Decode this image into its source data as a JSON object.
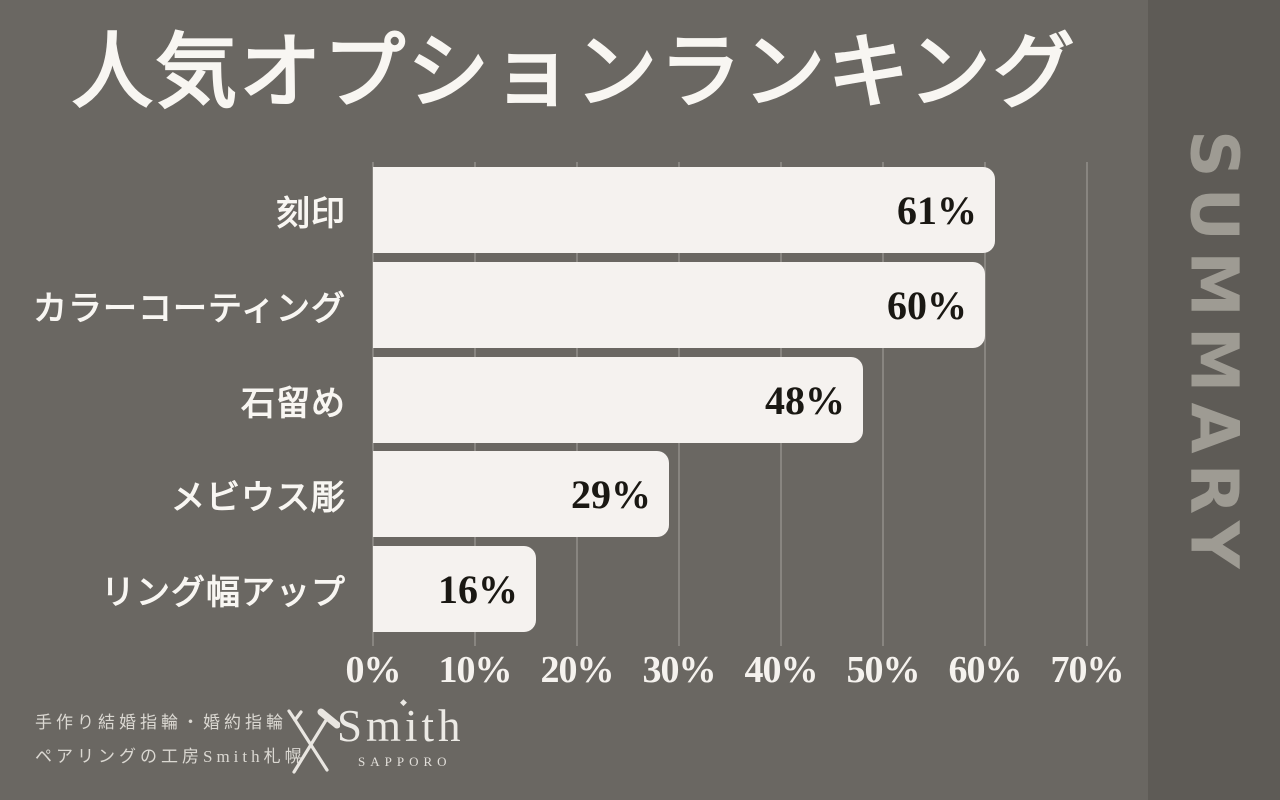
{
  "title": "人気オプションランキング",
  "sidebar": {
    "label": "SUMMARY"
  },
  "chart_data": {
    "type": "bar",
    "orientation": "horizontal",
    "title": "人気オプションランキング",
    "categories": [
      "刻印",
      "カラーコーティング",
      "石留め",
      "メビウス彫",
      "リング幅アップ"
    ],
    "values": [
      61,
      60,
      48,
      29,
      16
    ],
    "value_labels": [
      "61%",
      "60%",
      "48%",
      "29%",
      "16%"
    ],
    "x_ticks": [
      "0%",
      "10%",
      "20%",
      "30%",
      "40%",
      "50%",
      "60%",
      "70%"
    ],
    "xlim": [
      0,
      70
    ],
    "grid": true,
    "legend": false,
    "bar_color": "#f5f2ef",
    "value_label_color": "#1a1813",
    "axis_text_color": "#f5f2ee"
  },
  "footer": {
    "tagline_line1": "手作り結婚指輪・婚約指輪",
    "tagline_line2": "ペアリングの工房Smith札幌",
    "logo": {
      "name": "Smith",
      "subtext": "SAPPORO",
      "icon": "crossed-tools-icon",
      "accent": "diamond-icon"
    }
  },
  "colors": {
    "background": "#6a6762",
    "panel": "#5e5b56",
    "panel_text": "#9e9b93",
    "bar": "#f5f2ef",
    "heading_text": "#f8f6f2",
    "value_text": "#1a1813",
    "footer_text": "#dbd8d2"
  }
}
